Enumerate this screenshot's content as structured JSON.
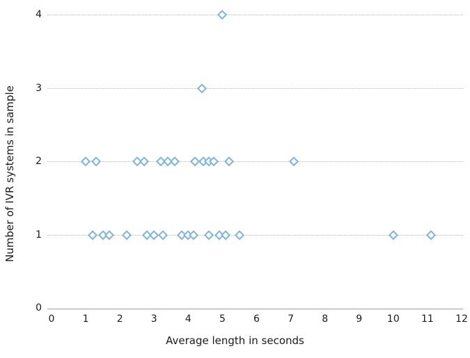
{
  "figure": {
    "background_color": "#ffffff",
    "marker_color": "#7cb4da",
    "marker_fill": "#ffffff",
    "grid_color": "#b8b8b8",
    "axis_line_color": "#9a9a9a",
    "text_color": "#1a1a1a"
  },
  "chart_data": {
    "type": "scatter",
    "title": "",
    "xlabel": "Average length in seconds",
    "ylabel": "Number of IVR systems in sample",
    "xlim": [
      0,
      12
    ],
    "ylim": [
      0,
      4
    ],
    "x_ticks": [
      0,
      1,
      2,
      3,
      4,
      5,
      6,
      7,
      8,
      9,
      10,
      11,
      12
    ],
    "y_ticks": [
      0,
      1,
      2,
      3,
      4
    ],
    "grid": "horizontal-dotted-at-y-1-2-3-4",
    "legend": "none",
    "marker": "hollow-diamond",
    "series": [
      {
        "name": "y=1",
        "y": 1,
        "x_values": [
          1.2,
          1.5,
          1.7,
          2.2,
          2.8,
          3.0,
          3.25,
          3.8,
          4.0,
          4.15,
          4.6,
          4.9,
          5.1,
          5.5,
          10.0,
          11.1
        ]
      },
      {
        "name": "y=2",
        "y": 2,
        "x_values": [
          1.0,
          1.3,
          2.5,
          2.7,
          3.2,
          3.4,
          3.6,
          4.2,
          4.45,
          4.6,
          4.75,
          5.2,
          7.1
        ]
      },
      {
        "name": "y=3",
        "y": 3,
        "x_values": [
          4.4
        ]
      },
      {
        "name": "y=4",
        "y": 4,
        "x_values": [
          5.0
        ]
      }
    ]
  }
}
